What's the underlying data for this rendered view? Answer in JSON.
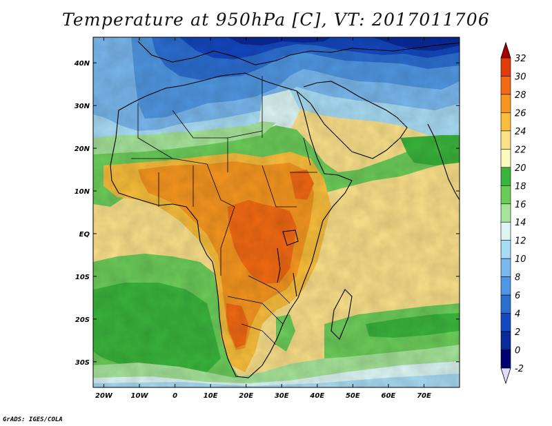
{
  "title": "Temperature at 950hPa [C], VT: 2017011706",
  "credit": "GrADS: IGES/COLA",
  "map": {
    "lon_range": [
      -23,
      80
    ],
    "lat_range": [
      -36,
      46
    ],
    "lon_ticks": [
      {
        "value": -20,
        "label": "20W"
      },
      {
        "value": -10,
        "label": "10W"
      },
      {
        "value": 0,
        "label": "0"
      },
      {
        "value": 10,
        "label": "10E"
      },
      {
        "value": 20,
        "label": "20E"
      },
      {
        "value": 30,
        "label": "30E"
      },
      {
        "value": 40,
        "label": "40E"
      },
      {
        "value": 50,
        "label": "50E"
      },
      {
        "value": 60,
        "label": "60E"
      },
      {
        "value": 70,
        "label": "70E"
      }
    ],
    "lat_ticks": [
      {
        "value": 40,
        "label": "40N"
      },
      {
        "value": 30,
        "label": "30N"
      },
      {
        "value": 20,
        "label": "20N"
      },
      {
        "value": 10,
        "label": "10N"
      },
      {
        "value": 0,
        "label": "EQ"
      },
      {
        "value": -10,
        "label": "10S"
      },
      {
        "value": -20,
        "label": "20S"
      },
      {
        "value": -30,
        "label": "30S"
      }
    ]
  },
  "colorbar": {
    "levels": [
      "32",
      "30",
      "28",
      "26",
      "24",
      "22",
      "20",
      "18",
      "16",
      "14",
      "12",
      "10",
      "8",
      "6",
      "4",
      "2",
      "0",
      "-2"
    ],
    "colors": [
      "#a50000",
      "#e03c0a",
      "#f26a14",
      "#f59620",
      "#f8be3c",
      "#fae08a",
      "#fdfac0",
      "#3ab43c",
      "#6ccc5a",
      "#a6e49a",
      "#dcf6f4",
      "#a8dcf4",
      "#7ab8ee",
      "#5096e0",
      "#2c6ed0",
      "#1448c0",
      "#0a2a9a",
      "#000070",
      "#e0dcff"
    ]
  }
}
